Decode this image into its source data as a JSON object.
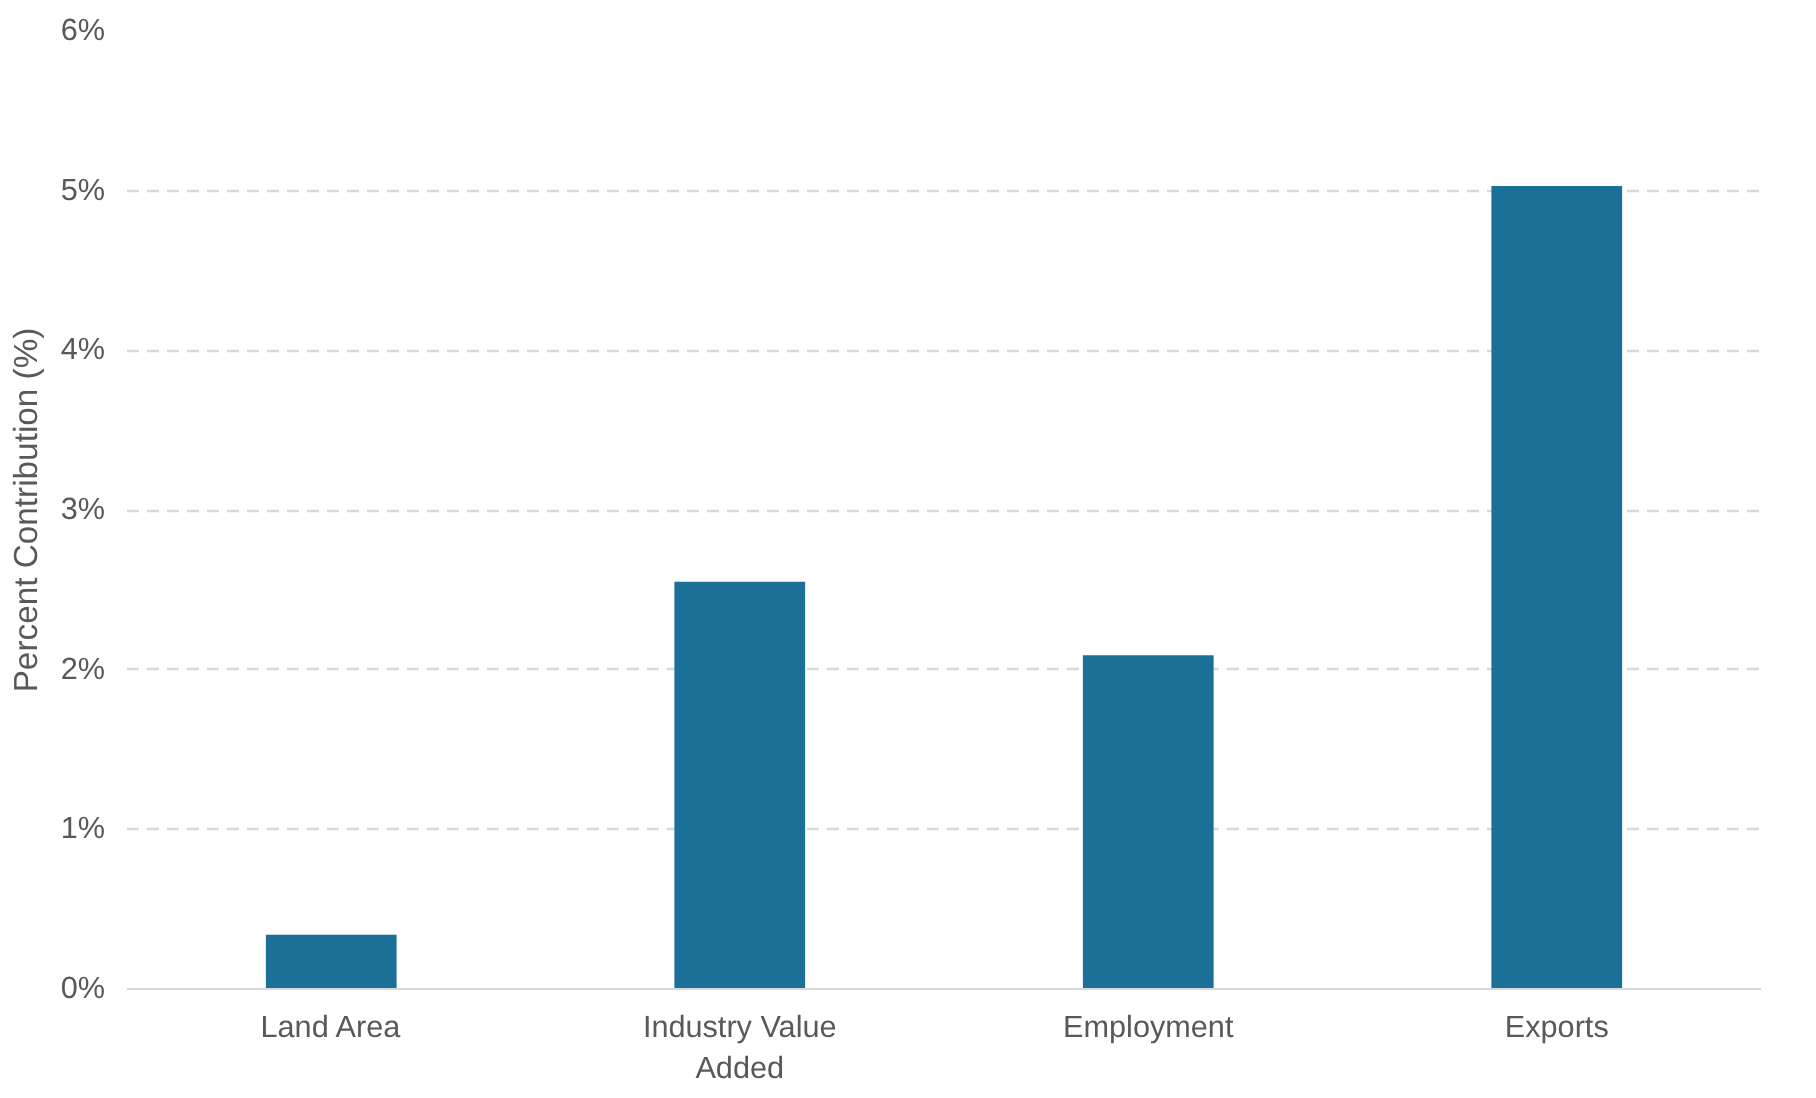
{
  "chart_data": {
    "type": "bar",
    "ylabel": "Percent Contribution (%)",
    "categories": [
      "Land Area",
      "Industry Value Added",
      "Employment",
      "Exports"
    ],
    "values": [
      0.34,
      2.55,
      2.09,
      5.03
    ],
    "color": "#1a7096",
    "ylim": [
      0,
      6
    ],
    "yticks": [
      {
        "value": 0,
        "label": "0%"
      },
      {
        "value": 1,
        "label": "1%"
      },
      {
        "value": 2,
        "label": "2%"
      },
      {
        "value": 3,
        "label": "3%"
      },
      {
        "value": 4,
        "label": "4%"
      },
      {
        "value": 5,
        "label": "5%"
      },
      {
        "value": 6,
        "label": "6%"
      }
    ],
    "grid": "y"
  }
}
